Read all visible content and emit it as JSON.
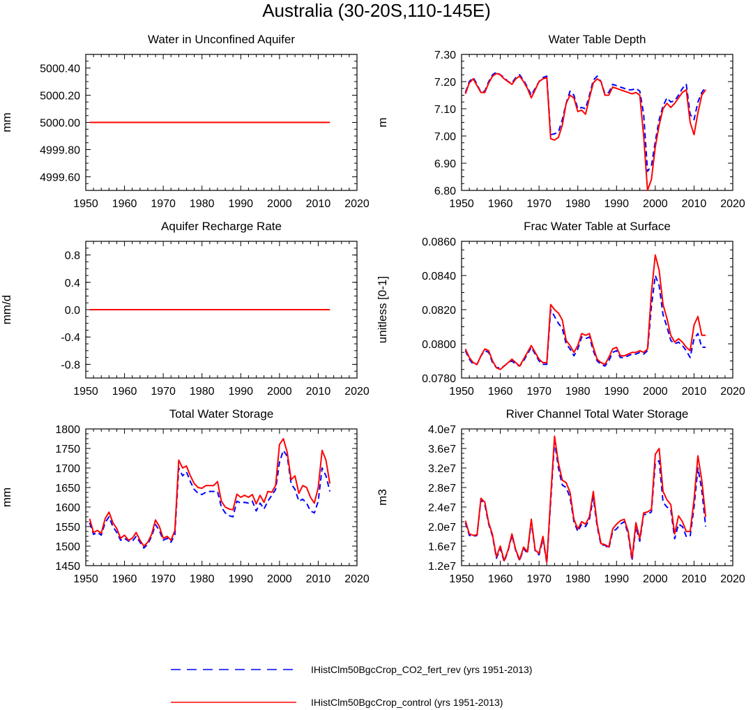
{
  "figure": {
    "title": "Australia (30-20S,110-145E)"
  },
  "legend": [
    {
      "label": "IHistClm50BgcCrop_CO2_fert_rev (yrs 1951-2013)",
      "color": "#0000ff",
      "style": "dashed"
    },
    {
      "label": "IHistClm50BgcCrop_control (yrs 1951-2013)",
      "color": "#ff0000",
      "style": "solid"
    }
  ],
  "chart_data": [
    {
      "type": "line",
      "title": "Water in Unconfined Aquifer",
      "ylabel": "mm",
      "xlim": [
        1950,
        2020
      ],
      "xticks": [
        "1950",
        "1960",
        "1970",
        "1980",
        "1990",
        "2000",
        "2010",
        "2020"
      ],
      "ylim": [
        4999.5,
        5000.5
      ],
      "yticks": [
        "4999.60",
        "4999.80",
        "5000.00",
        "5000.20",
        "5000.40"
      ],
      "x_start": 1951,
      "series": [
        {
          "name": "IHistClm50BgcCrop_CO2_fert_rev (yrs 1951-2013)",
          "values": [
            5000,
            5000,
            5000,
            5000,
            5000,
            5000,
            5000,
            5000,
            5000,
            5000,
            5000,
            5000,
            5000,
            5000,
            5000,
            5000,
            5000,
            5000,
            5000,
            5000,
            5000,
            5000,
            5000,
            5000,
            5000,
            5000,
            5000,
            5000,
            5000,
            5000,
            5000,
            5000,
            5000,
            5000,
            5000,
            5000,
            5000,
            5000,
            5000,
            5000,
            5000,
            5000,
            5000,
            5000,
            5000,
            5000,
            5000,
            5000,
            5000,
            5000,
            5000,
            5000,
            5000,
            5000,
            5000,
            5000,
            5000,
            5000,
            5000,
            5000,
            5000,
            5000,
            5000
          ]
        },
        {
          "name": "IHistClm50BgcCrop_control (yrs 1951-2013)",
          "values": [
            5000,
            5000,
            5000,
            5000,
            5000,
            5000,
            5000,
            5000,
            5000,
            5000,
            5000,
            5000,
            5000,
            5000,
            5000,
            5000,
            5000,
            5000,
            5000,
            5000,
            5000,
            5000,
            5000,
            5000,
            5000,
            5000,
            5000,
            5000,
            5000,
            5000,
            5000,
            5000,
            5000,
            5000,
            5000,
            5000,
            5000,
            5000,
            5000,
            5000,
            5000,
            5000,
            5000,
            5000,
            5000,
            5000,
            5000,
            5000,
            5000,
            5000,
            5000,
            5000,
            5000,
            5000,
            5000,
            5000,
            5000,
            5000,
            5000,
            5000,
            5000,
            5000,
            5000
          ]
        }
      ]
    },
    {
      "type": "line",
      "title": "Water Table Depth",
      "ylabel": "m",
      "xlim": [
        1950,
        2020
      ],
      "xticks": [
        "1950",
        "1960",
        "1970",
        "1980",
        "1990",
        "2000",
        "2010",
        "2020"
      ],
      "ylim": [
        6.8,
        7.3
      ],
      "yticks": [
        "6.80",
        "6.90",
        "7.00",
        "7.10",
        "7.20",
        "7.30"
      ],
      "x_start": 1951,
      "series": [
        {
          "name": "IHistClm50BgcCrop_CO2_fert_rev (yrs 1951-2013)",
          "values": [
            7.16,
            7.2,
            7.215,
            7.19,
            7.16,
            7.165,
            7.2,
            7.225,
            7.235,
            7.225,
            7.215,
            7.2,
            7.195,
            7.215,
            7.225,
            7.205,
            7.18,
            7.15,
            7.175,
            7.2,
            7.215,
            7.22,
            7.005,
            7.008,
            7.015,
            7.06,
            7.12,
            7.165,
            7.15,
            7.1,
            7.105,
            7.1,
            7.15,
            7.205,
            7.22,
            7.2,
            7.155,
            7.16,
            7.19,
            7.185,
            7.18,
            7.175,
            7.17,
            7.17,
            7.175,
            7.165,
            7.08,
            6.87,
            6.89,
            6.98,
            7.06,
            7.11,
            7.14,
            7.125,
            7.13,
            7.15,
            7.175,
            7.19,
            7.08,
            7.06,
            7.125,
            7.16,
            7.18
          ]
        },
        {
          "name": "IHistClm50BgcCrop_control (yrs 1951-2013)",
          "values": [
            7.155,
            7.195,
            7.21,
            7.185,
            7.16,
            7.16,
            7.195,
            7.22,
            7.23,
            7.225,
            7.21,
            7.2,
            7.19,
            7.21,
            7.22,
            7.2,
            7.175,
            7.14,
            7.17,
            7.2,
            7.21,
            7.215,
            6.99,
            6.985,
            6.995,
            7.04,
            7.12,
            7.15,
            7.14,
            7.09,
            7.095,
            7.08,
            7.14,
            7.195,
            7.21,
            7.2,
            7.15,
            7.15,
            7.18,
            7.175,
            7.17,
            7.165,
            7.16,
            7.155,
            7.16,
            7.15,
            7.0,
            6.8,
            6.84,
            6.96,
            7.04,
            7.1,
            7.12,
            7.105,
            7.12,
            7.14,
            7.16,
            7.17,
            7.05,
            7.005,
            7.085,
            7.15,
            7.17
          ]
        }
      ]
    },
    {
      "type": "line",
      "title": "Aquifer Recharge Rate",
      "ylabel": "mm/d",
      "xlim": [
        1950,
        2020
      ],
      "xticks": [
        "1950",
        "1960",
        "1970",
        "1980",
        "1990",
        "2000",
        "2010",
        "2020"
      ],
      "ylim": [
        -1.0,
        1.0
      ],
      "yticks": [
        "-0.8",
        "-0.4",
        "0.0",
        "0.4",
        "0.8"
      ],
      "x_start": 1951,
      "series": [
        {
          "name": "IHistClm50BgcCrop_CO2_fert_rev (yrs 1951-2013)",
          "values": [
            0,
            0,
            0,
            0,
            0,
            0,
            0,
            0,
            0,
            0,
            0,
            0,
            0,
            0,
            0,
            0,
            0,
            0,
            0,
            0,
            0,
            0,
            0,
            0,
            0,
            0,
            0,
            0,
            0,
            0,
            0,
            0,
            0,
            0,
            0,
            0,
            0,
            0,
            0,
            0,
            0,
            0,
            0,
            0,
            0,
            0,
            0,
            0,
            0,
            0,
            0,
            0,
            0,
            0,
            0,
            0,
            0,
            0,
            0,
            0,
            0,
            0,
            0
          ]
        },
        {
          "name": "IHistClm50BgcCrop_control (yrs 1951-2013)",
          "values": [
            0,
            0,
            0,
            0,
            0,
            0,
            0,
            0,
            0,
            0,
            0,
            0,
            0,
            0,
            0,
            0,
            0,
            0,
            0,
            0,
            0,
            0,
            0,
            0,
            0,
            0,
            0,
            0,
            0,
            0,
            0,
            0,
            0,
            0,
            0,
            0,
            0,
            0,
            0,
            0,
            0,
            0,
            0,
            0,
            0,
            0,
            0,
            0,
            0,
            0,
            0,
            0,
            0,
            0,
            0,
            0,
            0,
            0,
            0,
            0,
            0,
            0,
            0
          ]
        }
      ]
    },
    {
      "type": "line",
      "title": "Frac Water Table at Surface",
      "ylabel": "unitless [0-1]",
      "xlim": [
        1950,
        2020
      ],
      "xticks": [
        "1950",
        "1960",
        "1970",
        "1980",
        "1990",
        "2000",
        "2010",
        "2020"
      ],
      "ylim": [
        0.078,
        0.086
      ],
      "yticks": [
        "0.0780",
        "0.0800",
        "0.0820",
        "0.0840",
        "0.0860"
      ],
      "x_start": 1951,
      "series": [
        {
          "name": "IHistClm50BgcCrop_CO2_fert_rev (yrs 1951-2013)",
          "values": [
            0.0796,
            0.0791,
            0.0788,
            0.0788,
            0.0793,
            0.0796,
            0.0795,
            0.0789,
            0.0786,
            0.0786,
            0.0787,
            0.0789,
            0.079,
            0.0788,
            0.0787,
            0.079,
            0.0794,
            0.0798,
            0.0794,
            0.079,
            0.0788,
            0.0788,
            0.082,
            0.0816,
            0.0812,
            0.0809,
            0.08,
            0.0797,
            0.0793,
            0.0797,
            0.0804,
            0.0803,
            0.0804,
            0.0796,
            0.079,
            0.0788,
            0.0787,
            0.079,
            0.0795,
            0.0796,
            0.0792,
            0.0792,
            0.0793,
            0.0794,
            0.0794,
            0.0795,
            0.0794,
            0.0796,
            0.0822,
            0.084,
            0.0834,
            0.0817,
            0.081,
            0.0802,
            0.08,
            0.0801,
            0.0799,
            0.0796,
            0.0792,
            0.0803,
            0.0806,
            0.0798,
            0.0798
          ]
        },
        {
          "name": "IHistClm50BgcCrop_control (yrs 1951-2013)",
          "values": [
            0.0797,
            0.0792,
            0.0789,
            0.0788,
            0.0793,
            0.0797,
            0.0796,
            0.079,
            0.0786,
            0.0785,
            0.0787,
            0.0789,
            0.0791,
            0.0789,
            0.0787,
            0.0791,
            0.0795,
            0.0799,
            0.0795,
            0.0791,
            0.0789,
            0.0789,
            0.0823,
            0.082,
            0.0818,
            0.0814,
            0.0802,
            0.0799,
            0.0795,
            0.0799,
            0.0806,
            0.0805,
            0.0806,
            0.0798,
            0.0791,
            0.0789,
            0.0788,
            0.0792,
            0.0797,
            0.0798,
            0.0793,
            0.0793,
            0.0794,
            0.0795,
            0.0795,
            0.0796,
            0.0795,
            0.0797,
            0.083,
            0.0852,
            0.0843,
            0.0823,
            0.0815,
            0.0805,
            0.0801,
            0.0803,
            0.0801,
            0.0798,
            0.0796,
            0.0811,
            0.0816,
            0.0805,
            0.0805
          ]
        }
      ]
    },
    {
      "type": "line",
      "title": "Total Water Storage",
      "ylabel": "mm",
      "xlim": [
        1950,
        2020
      ],
      "xticks": [
        "1950",
        "1960",
        "1970",
        "1980",
        "1990",
        "2000",
        "2010",
        "2020"
      ],
      "ylim": [
        1450,
        1800
      ],
      "yticks": [
        "1450",
        "1500",
        "1550",
        "1600",
        "1650",
        "1700",
        "1750",
        "1800"
      ],
      "x_start": 1951,
      "series": [
        {
          "name": "IHistClm50BgcCrop_CO2_fert_rev (yrs 1951-2013)",
          "values": [
            1560,
            1530,
            1535,
            1528,
            1560,
            1575,
            1550,
            1535,
            1515,
            1520,
            1513,
            1512,
            1525,
            1510,
            1495,
            1505,
            1525,
            1555,
            1540,
            1515,
            1520,
            1510,
            1530,
            1700,
            1680,
            1690,
            1665,
            1645,
            1635,
            1632,
            1638,
            1640,
            1640,
            1640,
            1600,
            1585,
            1578,
            1575,
            1615,
            1610,
            1612,
            1610,
            1615,
            1590,
            1610,
            1595,
            1615,
            1630,
            1645,
            1715,
            1745,
            1730,
            1660,
            1645,
            1615,
            1620,
            1610,
            1590,
            1585,
            1615,
            1700,
            1680,
            1640
          ]
        },
        {
          "name": "IHistClm50BgcCrop_control (yrs 1951-2013)",
          "values": [
            1570,
            1535,
            1540,
            1533,
            1570,
            1587,
            1560,
            1545,
            1520,
            1528,
            1515,
            1520,
            1535,
            1515,
            1500,
            1510,
            1530,
            1567,
            1550,
            1520,
            1525,
            1515,
            1540,
            1720,
            1700,
            1705,
            1680,
            1660,
            1650,
            1648,
            1655,
            1655,
            1655,
            1665,
            1615,
            1600,
            1595,
            1593,
            1633,
            1625,
            1630,
            1625,
            1632,
            1608,
            1630,
            1612,
            1640,
            1638,
            1655,
            1760,
            1775,
            1740,
            1670,
            1680,
            1635,
            1655,
            1650,
            1625,
            1610,
            1650,
            1745,
            1720,
            1660
          ]
        }
      ]
    },
    {
      "type": "line",
      "title": "River Channel Total Water Storage",
      "ylabel": "m3",
      "xlim": [
        1950,
        2020
      ],
      "xticks": [
        "1950",
        "1960",
        "1970",
        "1980",
        "1990",
        "2000",
        "2010",
        "2020"
      ],
      "ylim": [
        12000000.0,
        40000000.0
      ],
      "yticks": [
        "1.2e7",
        "1.6e7",
        "2.0e7",
        "2.4e7",
        "2.8e7",
        "3.2e7",
        "3.6e7",
        "4.0e7"
      ],
      "x_start": 1951,
      "series": [
        {
          "name": "IHistClm50BgcCrop_CO2_fert_rev (yrs 1951-2013)",
          "values": [
            20800000.0,
            18200000.0,
            18000000.0,
            18200000.0,
            25500000.0,
            24500000.0,
            20500000.0,
            18000000.0,
            13500000.0,
            15500000.0,
            12800000.0,
            15000000.0,
            18200000.0,
            15000000.0,
            13000000.0,
            15500000.0,
            14500000.0,
            21000000.0,
            15000000.0,
            14200000.0,
            17500000.0,
            12500000.0,
            25000000.0,
            37500000.0,
            32000000.0,
            28500000.0,
            28000000.0,
            26000000.0,
            21000000.0,
            19000000.0,
            20500000.0,
            20000000.0,
            21500000.0,
            26000000.0,
            20000000.0,
            16200000.0,
            16200000.0,
            15500000.0,
            19000000.0,
            19500000.0,
            20500000.0,
            21000000.0,
            18500000.0,
            13000000.0,
            20000000.0,
            17000000.0,
            22500000.0,
            22500000.0,
            23000000.0,
            33000000.0,
            33500000.0,
            25000000.0,
            24000000.0,
            23500000.0,
            17500000.0,
            20500000.0,
            20000000.0,
            18000000.0,
            18000000.0,
            24000000.0,
            32000000.0,
            27500000.0,
            20000000.0
          ]
        },
        {
          "name": "IHistClm50BgcCrop_control (yrs 1951-2013)",
          "values": [
            21200000.0,
            18500000.0,
            18200000.0,
            18300000.0,
            25800000.0,
            25000000.0,
            20800000.0,
            18300000.0,
            13800000.0,
            16000000.0,
            13000000.0,
            15200000.0,
            18500000.0,
            15200000.0,
            13200000.0,
            15800000.0,
            14800000.0,
            21500000.0,
            15200000.0,
            14500000.0,
            18000000.0,
            12700000.0,
            26000000.0,
            38500000.0,
            33000000.0,
            29500000.0,
            29000000.0,
            27000000.0,
            21500000.0,
            19500000.0,
            21000000.0,
            20500000.0,
            22000000.0,
            27200000.0,
            20500000.0,
            16500000.0,
            16300000.0,
            15800000.0,
            19500000.0,
            20500000.0,
            21200000.0,
            21500000.0,
            19000000.0,
            13500000.0,
            20800000.0,
            17500000.0,
            22800000.0,
            23000000.0,
            23500000.0,
            34800000.0,
            36000000.0,
            27200000.0,
            25500000.0,
            24500000.0,
            18500000.0,
            22200000.0,
            21000000.0,
            19000000.0,
            19000000.0,
            25500000.0,
            34500000.0,
            29500000.0,
            22000000.0
          ]
        }
      ]
    }
  ]
}
